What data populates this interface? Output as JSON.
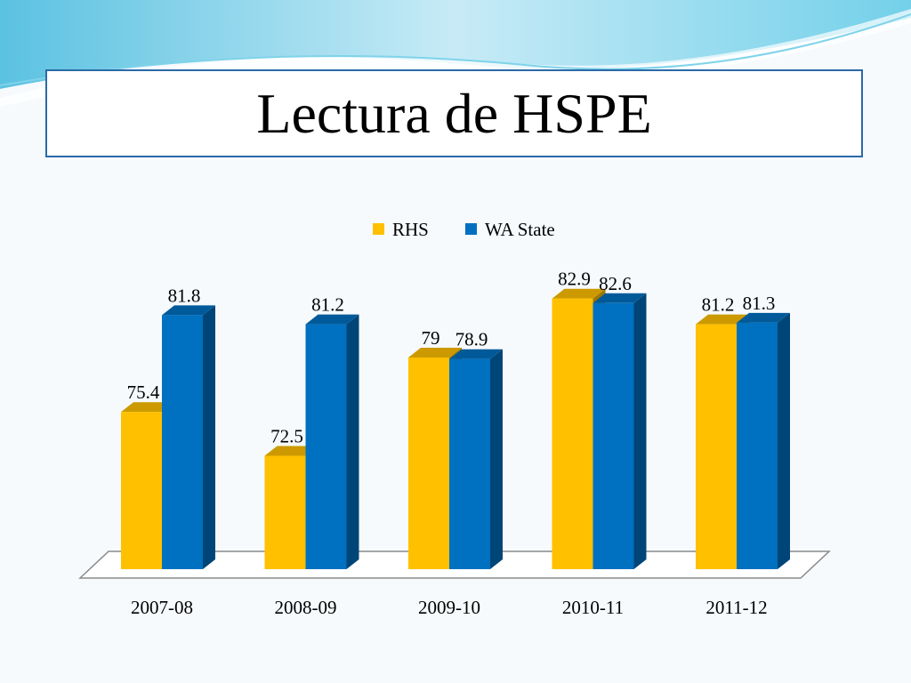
{
  "slide": {
    "title": "Lectura de HSPE"
  },
  "colors": {
    "rhs": "#ffc000",
    "wa_state": "#0070c0",
    "title_border": "#2a6aa8",
    "wave_light": "#bfe8f5",
    "wave_dark": "#5cc9e6"
  },
  "chart_data": {
    "type": "bar",
    "style": "3d-clustered-column",
    "title": "",
    "xlabel": "",
    "ylabel": "",
    "grid": false,
    "legend": "top-center",
    "categories": [
      "2007-08",
      "2008-09",
      "2009-10",
      "2010-11",
      "2011-12"
    ],
    "series": [
      {
        "name": "RHS",
        "color": "#ffc000",
        "values": [
          75.4,
          72.5,
          79,
          82.9,
          81.2
        ],
        "labels": [
          "75.4",
          "72.5",
          "79",
          "82.9",
          "81.2"
        ]
      },
      {
        "name": "WA State",
        "color": "#0070c0",
        "values": [
          81.8,
          81.2,
          78.9,
          82.6,
          81.3
        ],
        "labels": [
          "81.8",
          "81.2",
          "78.9",
          "82.6",
          "81.3"
        ]
      }
    ],
    "ylim": [
      65,
      85
    ]
  }
}
